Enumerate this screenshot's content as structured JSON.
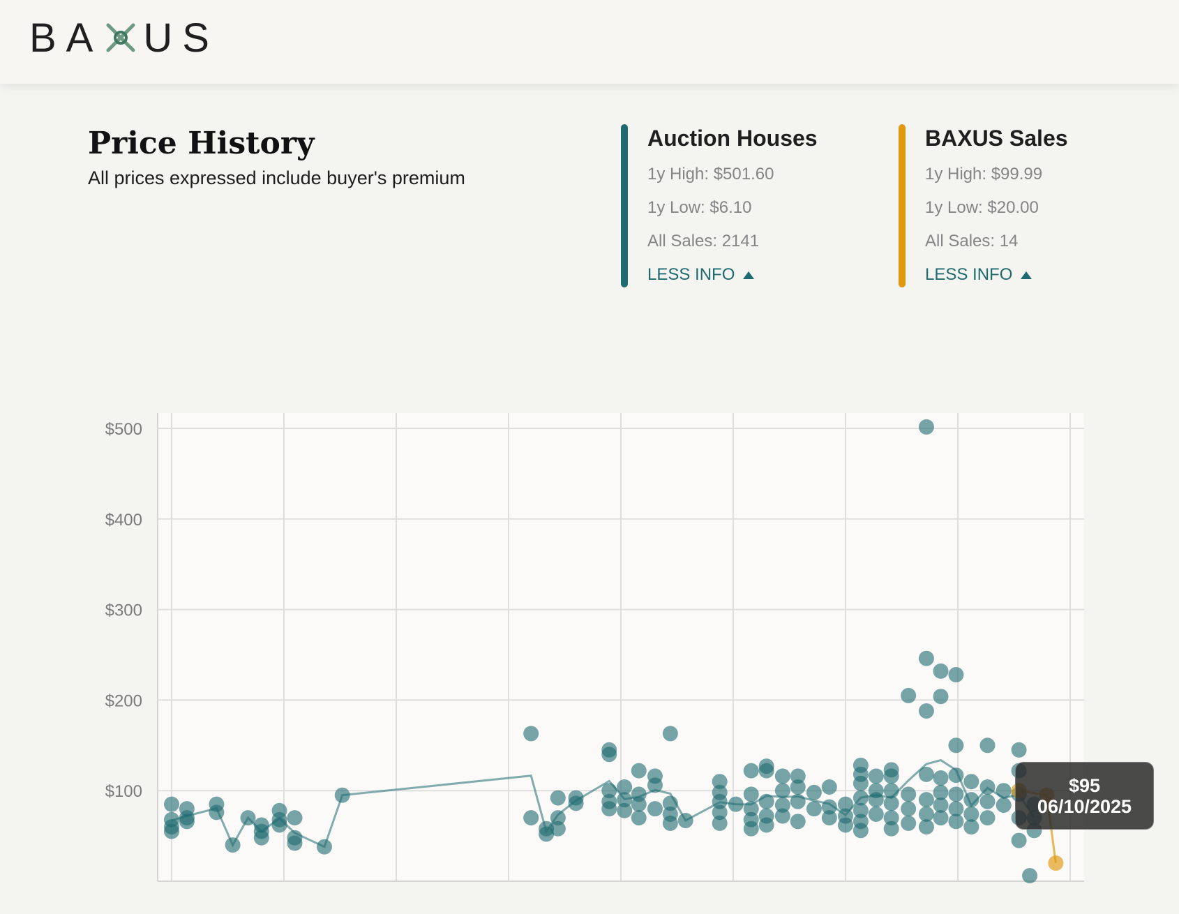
{
  "brand": {
    "logo_text_left": "BA",
    "logo_text_right": "US",
    "logo_mark": "X-logo-icon"
  },
  "header": {
    "title": "Price History",
    "subtitle": "All prices expressed include buyer's premium"
  },
  "auction_houses": {
    "title": "Auction Houses",
    "high": "1y High: $501.60",
    "low": "1y Low: $6.10",
    "sales": "All Sales: 2141",
    "toggle": "LESS INFO",
    "color": "#1e6a6f"
  },
  "baxus_sales": {
    "title": "BAXUS Sales",
    "high": "1y High: $99.99",
    "low": "1y Low: $20.00",
    "sales": "All Sales: 14",
    "toggle": "LESS INFO",
    "color": "#e0980e"
  },
  "tooltip": {
    "price": "$95",
    "date": "06/10/2025"
  },
  "chart_data": {
    "type": "scatter",
    "y_ticks": [
      "$500",
      "$400",
      "$300",
      "$200",
      "$100"
    ],
    "y_tick_values": [
      500,
      400,
      300,
      200,
      100
    ],
    "ylim": [
      0,
      515
    ],
    "xlim": [
      0,
      100
    ],
    "grid": true,
    "series": [
      {
        "name": "Auction Houses",
        "color": "#1e6a6f",
        "points": [
          [
            0,
            85
          ],
          [
            0,
            68
          ],
          [
            0,
            60
          ],
          [
            0,
            55
          ],
          [
            1.7,
            80
          ],
          [
            1.7,
            70
          ],
          [
            1.7,
            66
          ],
          [
            5,
            85
          ],
          [
            5,
            76
          ],
          [
            6.8,
            40
          ],
          [
            8.5,
            70
          ],
          [
            10,
            62
          ],
          [
            10,
            55
          ],
          [
            10,
            48
          ],
          [
            12,
            78
          ],
          [
            12,
            68
          ],
          [
            12,
            62
          ],
          [
            13.7,
            70
          ],
          [
            13.7,
            48
          ],
          [
            13.7,
            42
          ],
          [
            17,
            38
          ],
          [
            19,
            95
          ],
          [
            40,
            163
          ],
          [
            40,
            70
          ],
          [
            41.7,
            58
          ],
          [
            41.7,
            52
          ],
          [
            43,
            92
          ],
          [
            43,
            70
          ],
          [
            43,
            58
          ],
          [
            45,
            92
          ],
          [
            45,
            86
          ],
          [
            48.7,
            145
          ],
          [
            48.7,
            140
          ],
          [
            48.7,
            100
          ],
          [
            48.7,
            88
          ],
          [
            48.7,
            80
          ],
          [
            50.4,
            104
          ],
          [
            50.4,
            90
          ],
          [
            50.4,
            78
          ],
          [
            52,
            122
          ],
          [
            52,
            96
          ],
          [
            52,
            85
          ],
          [
            52,
            70
          ],
          [
            53.8,
            116
          ],
          [
            53.8,
            106
          ],
          [
            53.8,
            80
          ],
          [
            55.5,
            163
          ],
          [
            55.5,
            86
          ],
          [
            55.5,
            74
          ],
          [
            55.5,
            64
          ],
          [
            57.2,
            67
          ],
          [
            61,
            110
          ],
          [
            61,
            98
          ],
          [
            61,
            88
          ],
          [
            61,
            76
          ],
          [
            61,
            64
          ],
          [
            62.8,
            85
          ],
          [
            64.5,
            122
          ],
          [
            64.5,
            96
          ],
          [
            64.5,
            80
          ],
          [
            64.5,
            68
          ],
          [
            64.5,
            58
          ],
          [
            66.2,
            127
          ],
          [
            66.2,
            122
          ],
          [
            66.2,
            88
          ],
          [
            66.2,
            72
          ],
          [
            66.2,
            62
          ],
          [
            68,
            116
          ],
          [
            68,
            100
          ],
          [
            68,
            84
          ],
          [
            68,
            72
          ],
          [
            69.7,
            116
          ],
          [
            69.7,
            104
          ],
          [
            69.7,
            88
          ],
          [
            69.7,
            66
          ],
          [
            71.5,
            98
          ],
          [
            71.5,
            80
          ],
          [
            73.2,
            104
          ],
          [
            73.2,
            82
          ],
          [
            73.2,
            70
          ],
          [
            75,
            85
          ],
          [
            75,
            72
          ],
          [
            75,
            62
          ],
          [
            76.7,
            128
          ],
          [
            76.7,
            118
          ],
          [
            76.7,
            108
          ],
          [
            76.7,
            92
          ],
          [
            76.7,
            78
          ],
          [
            76.7,
            66
          ],
          [
            76.7,
            56
          ],
          [
            78.4,
            116
          ],
          [
            78.4,
            100
          ],
          [
            78.4,
            90
          ],
          [
            78.4,
            74
          ],
          [
            80.1,
            123
          ],
          [
            80.1,
            116
          ],
          [
            80.1,
            100
          ],
          [
            80.1,
            86
          ],
          [
            80.1,
            70
          ],
          [
            80.1,
            58
          ],
          [
            82,
            205
          ],
          [
            82,
            96
          ],
          [
            82,
            80
          ],
          [
            82,
            64
          ],
          [
            84,
            246
          ],
          [
            84,
            188
          ],
          [
            84,
            118
          ],
          [
            84,
            90
          ],
          [
            84,
            74
          ],
          [
            84,
            60
          ],
          [
            85.6,
            232
          ],
          [
            85.6,
            204
          ],
          [
            85.6,
            114
          ],
          [
            85.6,
            98
          ],
          [
            85.6,
            84
          ],
          [
            85.6,
            70
          ],
          [
            87.3,
            228
          ],
          [
            87.3,
            150
          ],
          [
            87.3,
            117
          ],
          [
            87.3,
            96
          ],
          [
            87.3,
            80
          ],
          [
            87.3,
            66
          ],
          [
            89,
            110
          ],
          [
            89,
            90
          ],
          [
            89,
            74
          ],
          [
            89,
            60
          ],
          [
            90.8,
            150
          ],
          [
            90.8,
            104
          ],
          [
            90.8,
            88
          ],
          [
            90.8,
            70
          ],
          [
            92.6,
            100
          ],
          [
            92.6,
            84
          ],
          [
            94.3,
            145
          ],
          [
            94.3,
            122
          ],
          [
            94.3,
            96
          ],
          [
            94.3,
            70
          ],
          [
            94.3,
            45
          ],
          [
            96,
            85
          ],
          [
            96,
            70
          ],
          [
            96,
            56
          ],
          [
            95.5,
            6.1
          ],
          [
            84,
            501.6
          ]
        ]
      },
      {
        "name": "BAXUS Sales",
        "color": "#e0980e",
        "points": [
          [
            94.3,
            99.99
          ],
          [
            97.4,
            95
          ],
          [
            98.4,
            20
          ]
        ]
      }
    ]
  }
}
